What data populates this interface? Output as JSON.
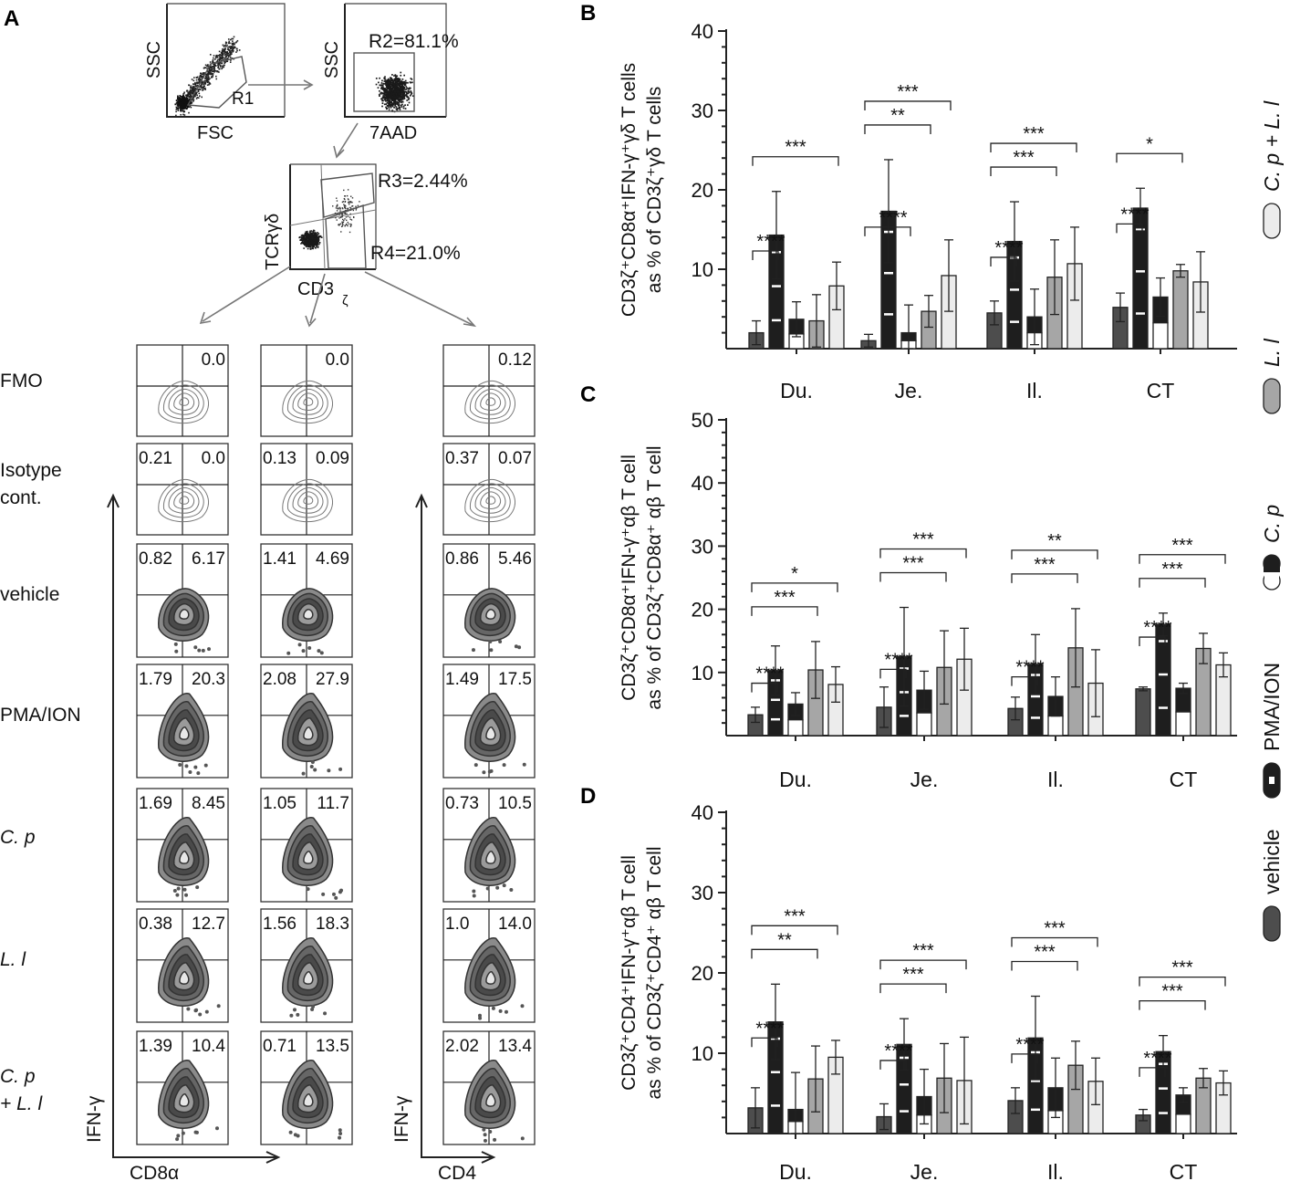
{
  "panelA": {
    "label": "A",
    "gating": [
      {
        "id": "g1",
        "xlabel": "FSC",
        "ylabel": "SSC",
        "gate": "R1"
      },
      {
        "id": "g2",
        "xlabel": "7AAD",
        "ylabel": "SSC",
        "gate": "R2=81.1%"
      },
      {
        "id": "g3",
        "xlabel": "CD3",
        "xsub": "ζ",
        "ylabel": "TCRγδ",
        "gates": [
          "R3=2.44%",
          "R4=21.0%"
        ]
      }
    ],
    "row_labels": [
      {
        "lines": [
          "FMO"
        ],
        "italic": false
      },
      {
        "lines": [
          "Isotype",
          "cont."
        ],
        "italic": false
      },
      {
        "lines": [
          "vehicle"
        ],
        "italic": false
      },
      {
        "lines": [
          "PMA/ION"
        ],
        "italic": false
      },
      {
        "lines": [
          "C. p"
        ],
        "italic": true
      },
      {
        "lines": [
          "L. l"
        ],
        "italic": true
      },
      {
        "lines": [
          "C. p",
          "+ L. l"
        ],
        "italic": true
      }
    ],
    "quadrant_values": [
      [
        [
          "",
          "0.0"
        ],
        [
          "",
          "0.0"
        ],
        [
          "",
          "0.12"
        ]
      ],
      [
        [
          "0.21",
          "0.0"
        ],
        [
          "0.13",
          "0.09"
        ],
        [
          "0.37",
          "0.07"
        ]
      ],
      [
        [
          "0.82",
          "6.17"
        ],
        [
          "1.41",
          "4.69"
        ],
        [
          "0.86",
          "5.46"
        ]
      ],
      [
        [
          "1.79",
          "20.3"
        ],
        [
          "2.08",
          "27.9"
        ],
        [
          "1.49",
          "17.5"
        ]
      ],
      [
        [
          "1.69",
          "8.45"
        ],
        [
          "1.05",
          "11.7"
        ],
        [
          "0.73",
          "10.5"
        ]
      ],
      [
        [
          "0.38",
          "12.7"
        ],
        [
          "1.56",
          "18.3"
        ],
        [
          "1.0",
          "14.0"
        ]
      ],
      [
        [
          "1.39",
          "10.4"
        ],
        [
          "0.71",
          "13.5"
        ],
        [
          "2.02",
          "13.4"
        ]
      ]
    ],
    "axis_labels": {
      "y_left": "IFN-γ",
      "x_left": "CD8α",
      "y_right": "IFN-γ",
      "x_right": "CD4"
    }
  },
  "legend": {
    "items": [
      {
        "label": "vehicle",
        "italic": false,
        "color": "#4d4d4d",
        "style": "solid"
      },
      {
        "label": "PMA/ION",
        "italic": false,
        "color": "#1e1e1e",
        "style": "dash"
      },
      {
        "label": "C. p",
        "italic": true,
        "color": "#1e1e1e",
        "style": "split"
      },
      {
        "label": "L. l",
        "italic": true,
        "color": "#a6a6a6",
        "style": "solid"
      },
      {
        "label": "C. p + L. l",
        "italic": true,
        "color": "#ececec",
        "style": "solid"
      }
    ]
  },
  "chart_data": [
    {
      "panel": "B",
      "type": "bar",
      "ylabel_line1": "CD3ζ⁺CD8α⁺IFN-γ⁺γδ T cells",
      "ylabel_line2": "as % of CD3ζ⁺γδ T cells",
      "categories": [
        "Du.",
        "Je.",
        "Il.",
        "CT"
      ],
      "ylim": [
        0,
        40
      ],
      "yticks": [
        10,
        20,
        30,
        40
      ],
      "series": [
        {
          "name": "vehicle",
          "values": [
            2.0,
            1.0,
            4.5,
            5.2
          ],
          "errors": [
            1.5,
            0.8,
            1.5,
            1.8
          ]
        },
        {
          "name": "PMA/ION",
          "values": [
            14.3,
            17.3,
            13.5,
            17.7
          ],
          "errors": [
            5.5,
            6.5,
            5.0,
            2.5
          ]
        },
        {
          "name": "C. p",
          "values": [
            3.7,
            2.0,
            4.0,
            6.5
          ],
          "errors": [
            2.2,
            3.5,
            3.5,
            2.4
          ]
        },
        {
          "name": "L. l",
          "values": [
            3.5,
            4.7,
            9.0,
            9.8
          ],
          "errors": [
            3.3,
            2.0,
            4.7,
            0.8
          ]
        },
        {
          "name": "C. p + L. l",
          "values": [
            7.9,
            9.2,
            10.7,
            8.4
          ],
          "errors": [
            3.0,
            4.5,
            4.6,
            3.8
          ]
        }
      ],
      "significance": [
        {
          "cat": 0,
          "to": 1,
          "label": "****"
        },
        {
          "cat": 0,
          "to": 4,
          "label": "***"
        },
        {
          "cat": 1,
          "to": 2,
          "label": "****"
        },
        {
          "cat": 1,
          "to": 3,
          "label": "**"
        },
        {
          "cat": 1,
          "to": 4,
          "label": "***"
        },
        {
          "cat": 2,
          "to": 1,
          "label": "****"
        },
        {
          "cat": 2,
          "to": 3,
          "label": "***"
        },
        {
          "cat": 2,
          "to": 4,
          "label": "***"
        },
        {
          "cat": 3,
          "to": 1,
          "label": "****"
        },
        {
          "cat": 3,
          "to": 3,
          "label": "*"
        }
      ]
    },
    {
      "panel": "C",
      "type": "bar",
      "ylabel_line1": "CD3ζ⁺CD8α⁺IFN-γ⁺αβ T cell",
      "ylabel_line2": "as % of CD3ζ⁺CD8α⁺ αβ T cell",
      "categories": [
        "Du.",
        "Je.",
        "Il.",
        "CT"
      ],
      "ylim": [
        0,
        50
      ],
      "yticks": [
        10,
        20,
        30,
        40,
        50
      ],
      "series": [
        {
          "name": "vehicle",
          "values": [
            3.3,
            4.5,
            4.3,
            7.4
          ],
          "errors": [
            1.2,
            3.2,
            1.8,
            0.3
          ]
        },
        {
          "name": "PMA/ION",
          "values": [
            10.3,
            12.5,
            11.3,
            17.6
          ],
          "errors": [
            3.9,
            7.8,
            4.7,
            1.8
          ]
        },
        {
          "name": "C. p",
          "values": [
            5.0,
            7.2,
            6.2,
            7.5
          ],
          "errors": [
            1.8,
            3.0,
            3.1,
            0.8
          ]
        },
        {
          "name": "L. l",
          "values": [
            10.4,
            10.8,
            13.9,
            13.8
          ],
          "errors": [
            4.5,
            5.8,
            6.2,
            2.4
          ]
        },
        {
          "name": "C. p + L. l",
          "values": [
            8.1,
            12.1,
            8.3,
            11.2
          ],
          "errors": [
            2.8,
            4.9,
            5.3,
            1.9
          ]
        }
      ],
      "significance": [
        {
          "cat": 0,
          "to": 1,
          "label": "****"
        },
        {
          "cat": 0,
          "to": 3,
          "label": "***"
        },
        {
          "cat": 0,
          "to": 4,
          "label": "*"
        },
        {
          "cat": 1,
          "to": 1,
          "label": "****"
        },
        {
          "cat": 1,
          "to": 3,
          "label": "***"
        },
        {
          "cat": 1,
          "to": 4,
          "label": "***"
        },
        {
          "cat": 2,
          "to": 1,
          "label": "****"
        },
        {
          "cat": 2,
          "to": 3,
          "label": "***"
        },
        {
          "cat": 2,
          "to": 4,
          "label": "**"
        },
        {
          "cat": 3,
          "to": 1,
          "label": "****"
        },
        {
          "cat": 3,
          "to": 3,
          "label": "***"
        },
        {
          "cat": 3,
          "to": 4,
          "label": "***"
        }
      ]
    },
    {
      "panel": "D",
      "type": "bar",
      "ylabel_line1": "CD3ζ⁺CD4⁺IFN-γ⁺αβ T cell",
      "ylabel_line2": "as % of CD3ζ⁺CD4⁺ αβ T cell",
      "categories": [
        "Du.",
        "Je.",
        "Il.",
        "CT"
      ],
      "ylim": [
        0,
        40
      ],
      "yticks": [
        10,
        20,
        30,
        40
      ],
      "series": [
        {
          "name": "vehicle",
          "values": [
            3.2,
            2.1,
            4.1,
            2.3
          ],
          "errors": [
            2.5,
            1.6,
            1.6,
            0.7
          ]
        },
        {
          "name": "PMA/ION",
          "values": [
            13.9,
            11.1,
            11.9,
            10.2
          ],
          "errors": [
            4.7,
            3.2,
            5.2,
            2.0
          ]
        },
        {
          "name": "C. p",
          "values": [
            3.0,
            4.6,
            5.7,
            4.8
          ],
          "errors": [
            4.6,
            3.4,
            3.7,
            0.9
          ]
        },
        {
          "name": "L. l",
          "values": [
            6.8,
            6.9,
            8.5,
            6.9
          ],
          "errors": [
            4.1,
            4.3,
            3.0,
            1.2
          ]
        },
        {
          "name": "C. p + L. l",
          "values": [
            9.5,
            6.6,
            6.5,
            6.3
          ],
          "errors": [
            2.1,
            5.4,
            2.9,
            1.5
          ]
        }
      ],
      "significance": [
        {
          "cat": 0,
          "to": 1,
          "label": "****"
        },
        {
          "cat": 0,
          "to": 3,
          "label": "**"
        },
        {
          "cat": 0,
          "to": 4,
          "label": "***"
        },
        {
          "cat": 1,
          "to": 1,
          "label": "****"
        },
        {
          "cat": 1,
          "to": 3,
          "label": "***"
        },
        {
          "cat": 1,
          "to": 4,
          "label": "***"
        },
        {
          "cat": 2,
          "to": 1,
          "label": "****"
        },
        {
          "cat": 2,
          "to": 3,
          "label": "***"
        },
        {
          "cat": 2,
          "to": 4,
          "label": "***"
        },
        {
          "cat": 3,
          "to": 1,
          "label": "****"
        },
        {
          "cat": 3,
          "to": 3,
          "label": "***"
        },
        {
          "cat": 3,
          "to": 4,
          "label": "***"
        }
      ]
    }
  ]
}
